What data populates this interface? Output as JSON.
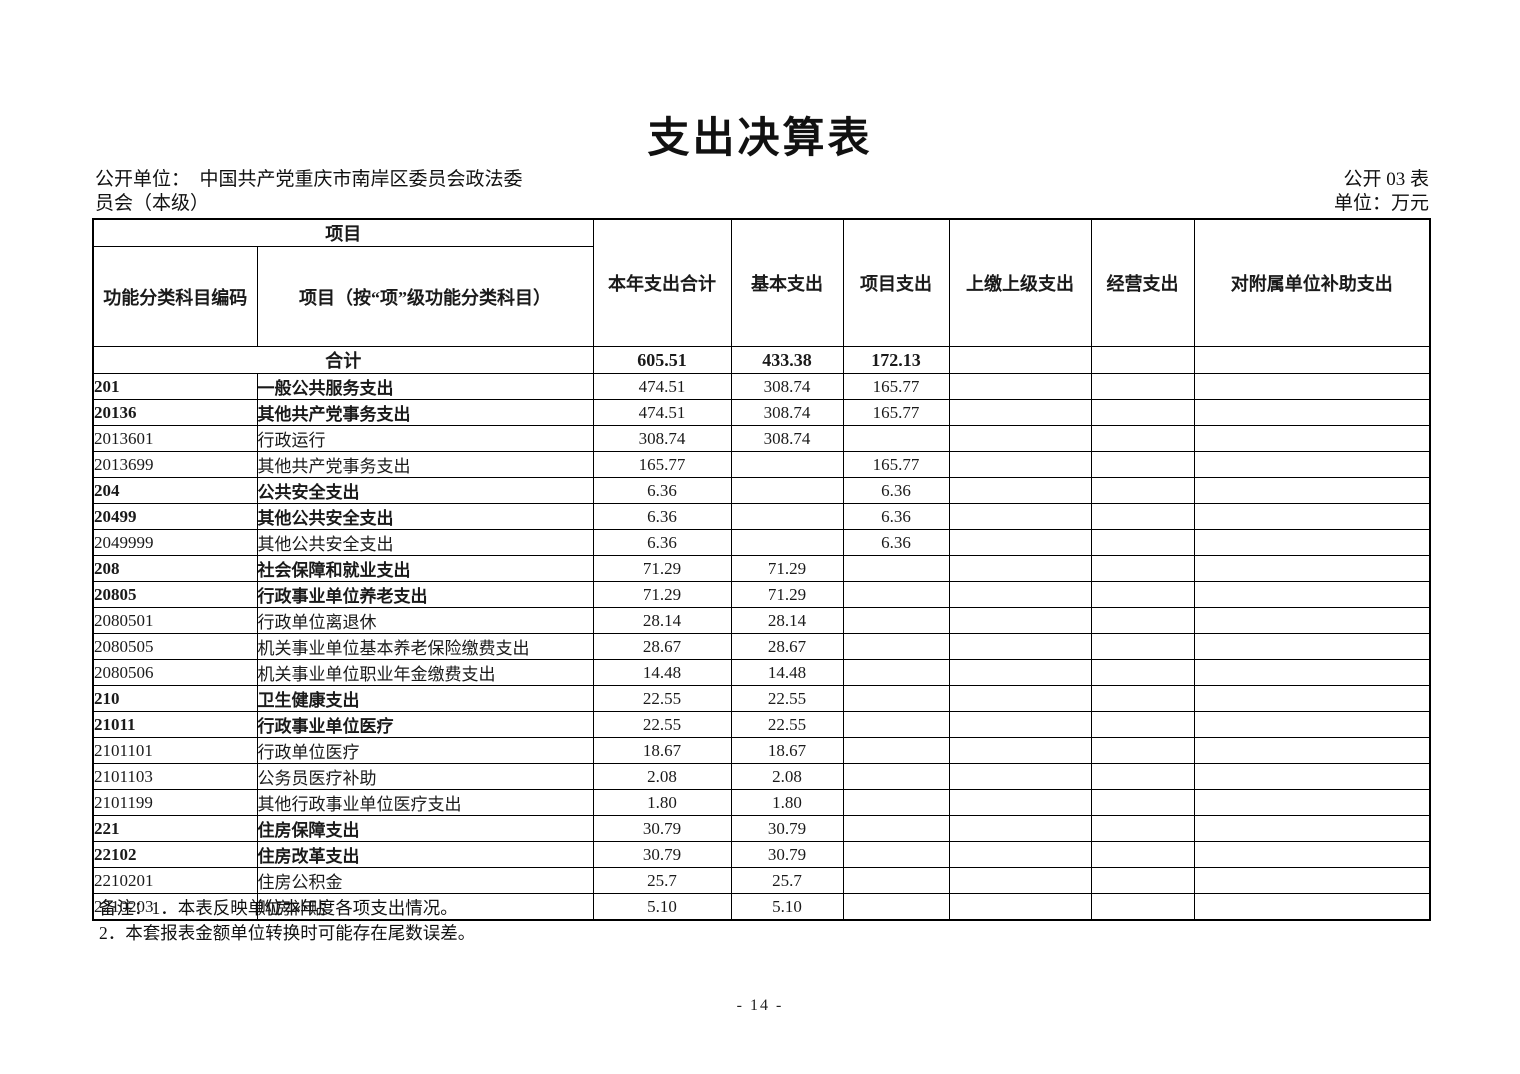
{
  "page": {
    "title": "支出决算表",
    "unit_line1": "公开单位：　中国共产党重庆市南岸区委员会政法委",
    "unit_line2": "员会（本级）",
    "table_code": "公开 03 表",
    "unit_of_measure": "单位：万元",
    "page_number": "- 14 -"
  },
  "table": {
    "header": {
      "project_group": "项目",
      "col_code": "功能分类科目编码",
      "col_item": "项目（按“项”级功能分类科目）",
      "col_total": "本年支出合计",
      "col_basic": "基本支出",
      "col_project": "项目支出",
      "col_upper": "上缴上级支出",
      "col_operating": "经营支出",
      "col_subsidy": "对附属单位补助支出"
    },
    "total_row": {
      "label": "合计",
      "total": "605.51",
      "basic": "433.38",
      "project": "172.13",
      "upper": "",
      "operating": "",
      "subsidy": ""
    },
    "rows": [
      {
        "code": "201",
        "name": "一般公共服务支出",
        "bold": true,
        "total": "474.51",
        "basic": "308.74",
        "project": "165.77"
      },
      {
        "code": "20136",
        "name": "其他共产党事务支出",
        "bold": true,
        "total": "474.51",
        "basic": "308.74",
        "project": "165.77"
      },
      {
        "code": "2013601",
        "name": "行政运行",
        "bold": false,
        "total": "308.74",
        "basic": "308.74",
        "project": ""
      },
      {
        "code": "2013699",
        "name": "其他共产党事务支出",
        "bold": false,
        "total": "165.77",
        "basic": "",
        "project": "165.77"
      },
      {
        "code": "204",
        "name": "公共安全支出",
        "bold": true,
        "total": "6.36",
        "basic": "",
        "project": "6.36"
      },
      {
        "code": "20499",
        "name": "其他公共安全支出",
        "bold": true,
        "total": "6.36",
        "basic": "",
        "project": "6.36"
      },
      {
        "code": "2049999",
        "name": "其他公共安全支出",
        "bold": false,
        "total": "6.36",
        "basic": "",
        "project": "6.36"
      },
      {
        "code": "208",
        "name": "社会保障和就业支出",
        "bold": true,
        "total": "71.29",
        "basic": "71.29",
        "project": ""
      },
      {
        "code": "20805",
        "name": "行政事业单位养老支出",
        "bold": true,
        "total": "71.29",
        "basic": "71.29",
        "project": ""
      },
      {
        "code": "2080501",
        "name": "行政单位离退休",
        "bold": false,
        "total": "28.14",
        "basic": "28.14",
        "project": ""
      },
      {
        "code": "2080505",
        "name": "机关事业单位基本养老保险缴费支出",
        "bold": false,
        "total": "28.67",
        "basic": "28.67",
        "project": ""
      },
      {
        "code": "2080506",
        "name": "机关事业单位职业年金缴费支出",
        "bold": false,
        "total": "14.48",
        "basic": "14.48",
        "project": ""
      },
      {
        "code": "210",
        "name": "卫生健康支出",
        "bold": true,
        "total": "22.55",
        "basic": "22.55",
        "project": ""
      },
      {
        "code": "21011",
        "name": "行政事业单位医疗",
        "bold": true,
        "total": "22.55",
        "basic": "22.55",
        "project": ""
      },
      {
        "code": "2101101",
        "name": "行政单位医疗",
        "bold": false,
        "total": "18.67",
        "basic": "18.67",
        "project": ""
      },
      {
        "code": "2101103",
        "name": "公务员医疗补助",
        "bold": false,
        "total": "2.08",
        "basic": "2.08",
        "project": ""
      },
      {
        "code": "2101199",
        "name": "其他行政事业单位医疗支出",
        "bold": false,
        "total": "1.80",
        "basic": "1.80",
        "project": ""
      },
      {
        "code": "221",
        "name": "住房保障支出",
        "bold": true,
        "total": "30.79",
        "basic": "30.79",
        "project": ""
      },
      {
        "code": "22102",
        "name": "住房改革支出",
        "bold": true,
        "total": "30.79",
        "basic": "30.79",
        "project": ""
      },
      {
        "code": "2210201",
        "name": "住房公积金",
        "bold": false,
        "total": "25.7",
        "basic": "25.7",
        "project": ""
      },
      {
        "code": "2210203",
        "name": "购房补贴",
        "bold": false,
        "total": "5.10",
        "basic": "5.10",
        "project": ""
      }
    ]
  },
  "notes": {
    "line1": "备注：1．本表反映单位本年度各项支出情况。",
    "line2": "2．本套报表金额单位转换时可能存在尾数误差。"
  }
}
